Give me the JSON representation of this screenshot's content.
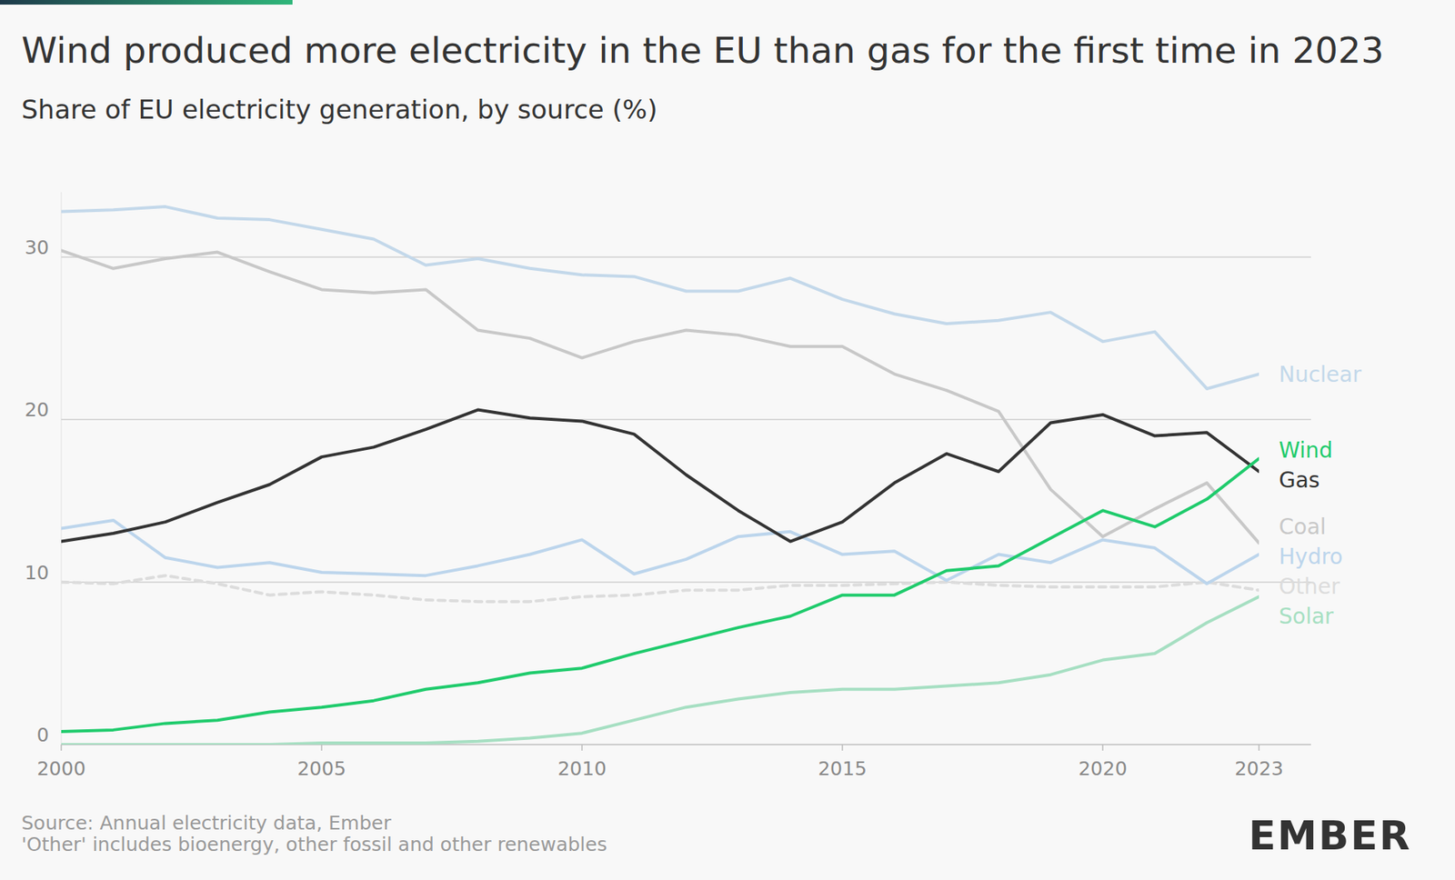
{
  "chart_data": {
    "type": "line",
    "title": "Wind produced more electricity in the EU than gas for the first time in 2023",
    "subtitle": "Share of EU electricity generation, by source (%)",
    "source": "Source: Annual electricity data, Ember",
    "note": "'Other' includes bioenergy, other fossil and other renewables",
    "logo": "EMBER",
    "x": [
      2000,
      2001,
      2002,
      2003,
      2004,
      2005,
      2006,
      2007,
      2008,
      2009,
      2010,
      2011,
      2012,
      2013,
      2014,
      2015,
      2016,
      2017,
      2018,
      2019,
      2020,
      2021,
      2022,
      2023
    ],
    "xlim": [
      2000,
      2023
    ],
    "xticks": [
      2000,
      2005,
      2010,
      2015,
      2020,
      2023
    ],
    "ylim": [
      0,
      34
    ],
    "yticks": [
      0,
      10,
      20,
      30
    ],
    "grid": true,
    "series": [
      {
        "name": "Nuclear",
        "color": "#c3d8ea",
        "values": [
          32.8,
          32.9,
          33.1,
          32.4,
          32.3,
          31.7,
          31.1,
          29.5,
          29.9,
          29.3,
          28.9,
          28.8,
          27.9,
          27.9,
          28.7,
          27.4,
          26.5,
          25.9,
          26.1,
          26.6,
          24.8,
          25.4,
          21.9,
          22.8
        ]
      },
      {
        "name": "Wind",
        "color": "#1fcb6c",
        "values": [
          0.8,
          0.9,
          1.3,
          1.5,
          2.0,
          2.3,
          2.7,
          3.4,
          3.8,
          4.4,
          4.7,
          5.6,
          6.4,
          7.2,
          7.9,
          9.2,
          9.2,
          10.7,
          11.0,
          12.7,
          14.4,
          13.4,
          15.1,
          17.6
        ]
      },
      {
        "name": "Gas",
        "color": "#333333",
        "values": [
          12.5,
          13.0,
          13.7,
          14.9,
          16.0,
          17.7,
          18.3,
          19.4,
          20.6,
          20.1,
          19.9,
          19.1,
          16.6,
          14.4,
          12.5,
          13.7,
          16.1,
          17.9,
          16.8,
          19.8,
          20.3,
          19.0,
          19.2,
          16.8
        ]
      },
      {
        "name": "Coal",
        "color": "#c8c8c8",
        "values": [
          30.4,
          29.3,
          29.9,
          30.3,
          29.1,
          28.0,
          27.8,
          28.0,
          25.5,
          25.0,
          23.8,
          24.8,
          25.5,
          25.2,
          24.5,
          24.5,
          22.8,
          21.8,
          20.5,
          15.7,
          12.8,
          14.5,
          16.1,
          12.4
        ]
      },
      {
        "name": "Hydro",
        "color": "#bcd5ec",
        "values": [
          13.3,
          13.8,
          11.5,
          10.9,
          11.2,
          10.6,
          10.5,
          10.4,
          11.0,
          11.7,
          12.6,
          10.5,
          11.4,
          12.8,
          13.1,
          11.7,
          11.9,
          10.1,
          11.7,
          11.2,
          12.6,
          12.1,
          9.9,
          11.7
        ]
      },
      {
        "name": "Other",
        "color": "#dcdcdc",
        "line_style": "dashed",
        "values": [
          10.0,
          9.9,
          10.4,
          9.9,
          9.2,
          9.4,
          9.2,
          8.9,
          8.8,
          8.8,
          9.1,
          9.2,
          9.5,
          9.5,
          9.8,
          9.8,
          9.9,
          10.0,
          9.8,
          9.7,
          9.7,
          9.7,
          10.0,
          9.5
        ]
      },
      {
        "name": "Solar",
        "color": "#a6dfc2",
        "values": [
          0.0,
          0.0,
          0.0,
          0.0,
          0.0,
          0.1,
          0.1,
          0.1,
          0.2,
          0.4,
          0.7,
          1.5,
          2.3,
          2.8,
          3.2,
          3.4,
          3.4,
          3.6,
          3.8,
          4.3,
          5.2,
          5.6,
          7.5,
          9.1
        ]
      }
    ]
  }
}
